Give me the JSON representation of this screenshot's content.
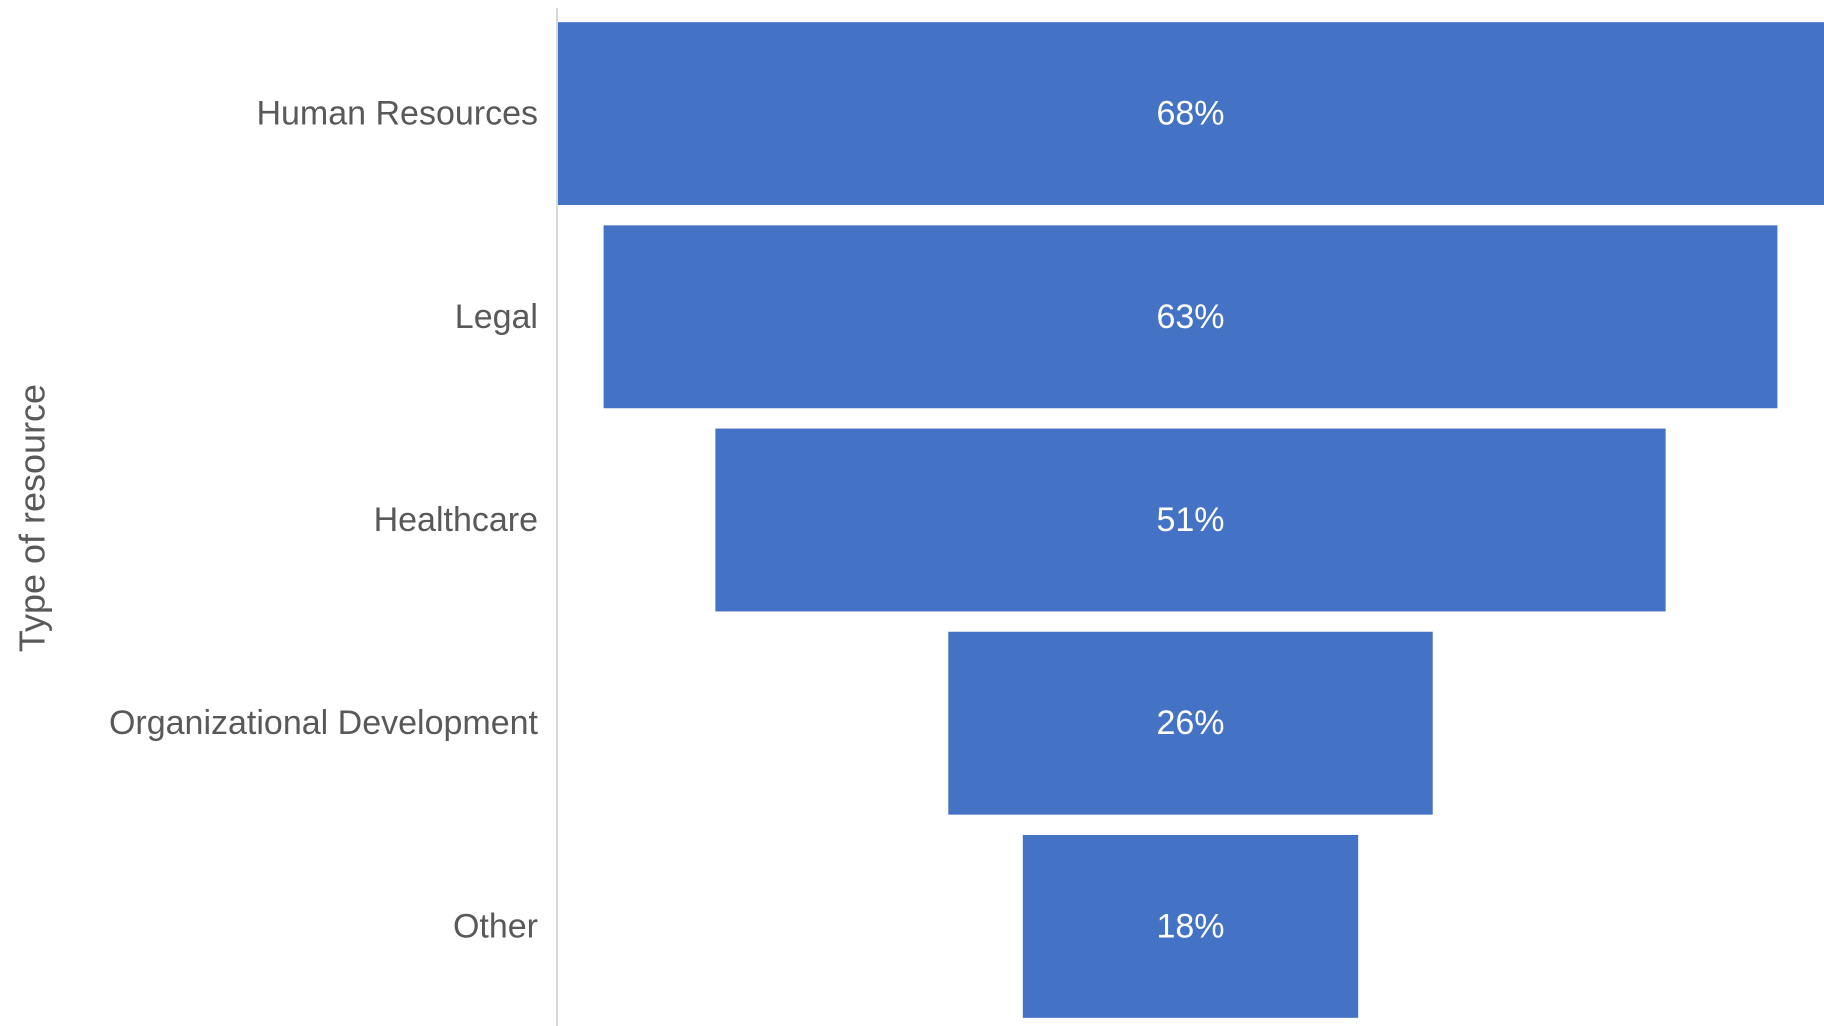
{
  "chart_data": {
    "type": "bar",
    "subtype": "funnel",
    "orientation": "horizontal",
    "categories": [
      "Human Resources",
      "Legal",
      "Healthcare",
      "Organizational Development",
      "Other"
    ],
    "values": [
      68,
      63,
      51,
      26,
      18
    ],
    "data_labels": [
      "68%",
      "63%",
      "51%",
      "26%",
      "18%"
    ],
    "unit": "%",
    "title": "",
    "xlabel": "",
    "ylabel": "Type of resource",
    "xlim": [
      0,
      68
    ],
    "grid": false,
    "legend": "none",
    "bar_color": "#4472C4",
    "axis_line_color": "#D9D9D9"
  }
}
